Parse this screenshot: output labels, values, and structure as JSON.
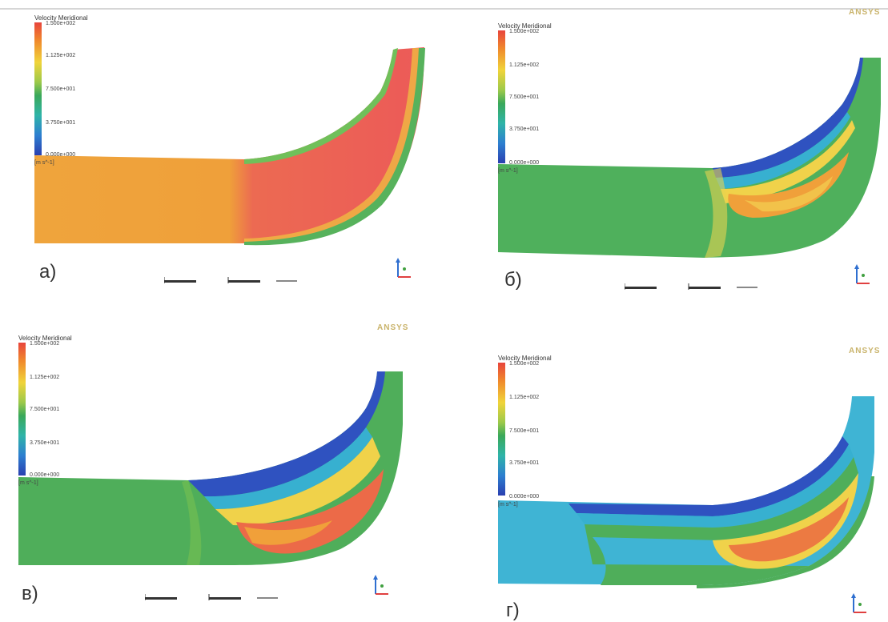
{
  "panels": [
    {
      "id": "a",
      "label": "а)",
      "legend_title": "Velocity Meridional",
      "ticks": [
        "1.500e+002",
        "1.125e+002",
        "7.500e+001",
        "3.750e+001",
        "0.000e+000"
      ],
      "unit": "[m s^-1]",
      "brand": ""
    },
    {
      "id": "b",
      "label": "б)",
      "legend_title": "Velocity Meridional",
      "ticks": [
        "1.500e+002",
        "1.125e+002",
        "7.500e+001",
        "3.750e+001",
        "0.000e+000"
      ],
      "unit": "[m s^-1]",
      "brand": "ANSYS"
    },
    {
      "id": "c",
      "label": "в)",
      "legend_title": "Velocity Meridional",
      "ticks": [
        "1.500e+002",
        "1.125e+002",
        "7.500e+001",
        "3.750e+001",
        "0.000e+000"
      ],
      "unit": "[m s^-1]",
      "brand": "ANSYS"
    },
    {
      "id": "d",
      "label": "г)",
      "legend_title": "Velocity Meridional",
      "ticks": [
        "1.500e+002",
        "1.125e+002",
        "7.500e+001",
        "3.750e+001",
        "0.000e+000"
      ],
      "unit": "[m s^-1]",
      "brand": "ANSYS"
    }
  ],
  "colors": {
    "red": "#ec5a52",
    "orange": "#f0a43a",
    "yellow": "#f2d54a",
    "green": "#4fae5a",
    "cyan": "#37b8d8",
    "blue": "#2f4fb8"
  }
}
